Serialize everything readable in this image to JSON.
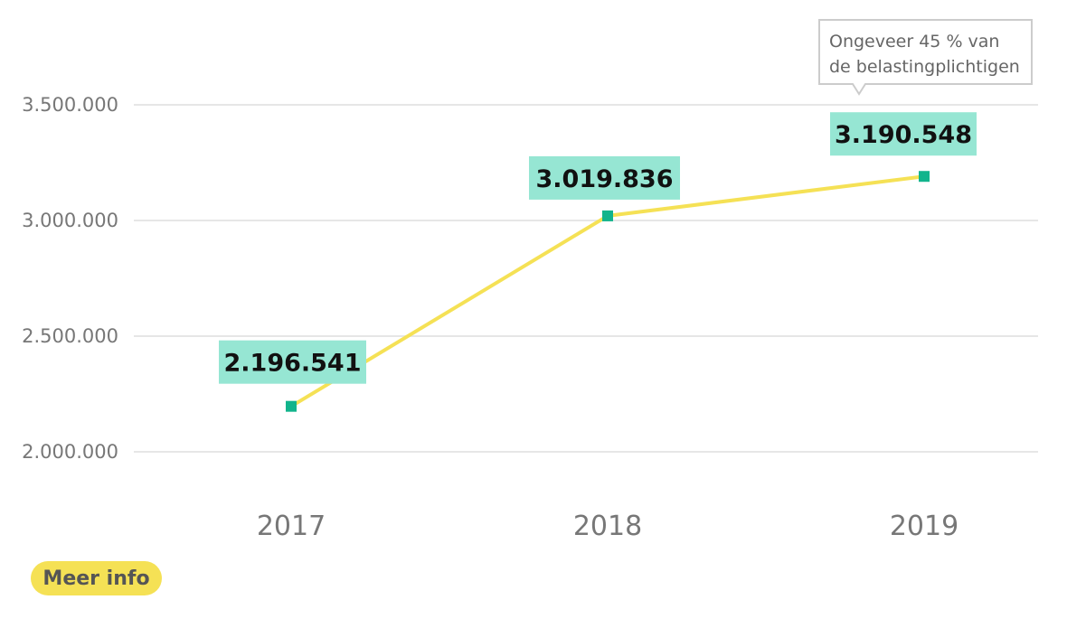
{
  "chart_data": {
    "type": "line",
    "categories": [
      "2017",
      "2018",
      "2019"
    ],
    "series": [
      {
        "values": [
          2196541,
          3019836,
          3190548
        ]
      }
    ],
    "data_labels": [
      "2.196.541",
      "3.019.836",
      "3.190.548"
    ],
    "y_ticks": [
      {
        "value": 2000000,
        "label": "2.000.000"
      },
      {
        "value": 2500000,
        "label": "2.500.000"
      },
      {
        "value": 3000000,
        "label": "3.000.000"
      },
      {
        "value": 3500000,
        "label": "3.500.000"
      }
    ],
    "ylim": [
      2000000,
      3500000
    ],
    "grid": true,
    "annotation": {
      "category": "2019",
      "lines": [
        "Ongeveer 45 % van",
        "de belastingplichtigen"
      ]
    },
    "colors": {
      "line": "#f5e155",
      "marker": "#12b48c",
      "label_bg": "#96e6d3",
      "grid": "#e6e6e6"
    }
  },
  "more_button": {
    "label": "Meer info"
  }
}
